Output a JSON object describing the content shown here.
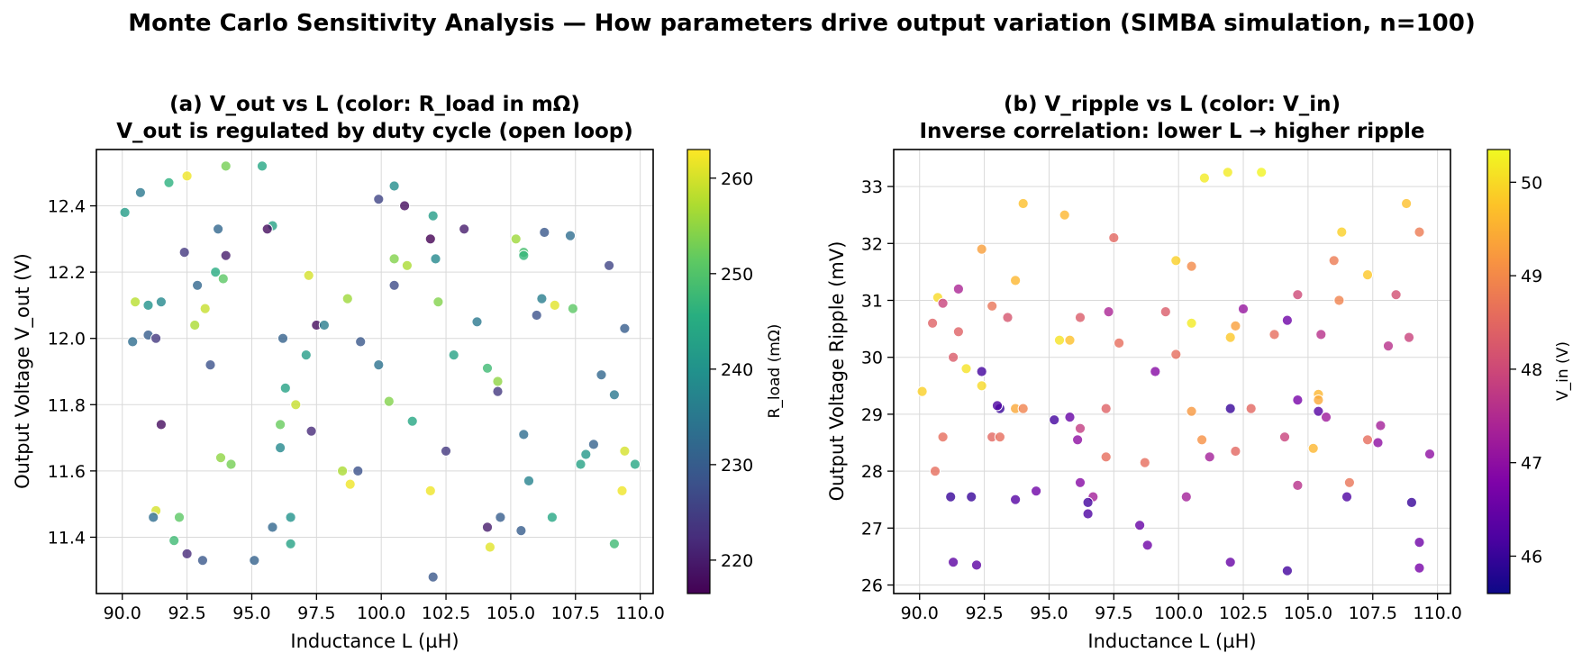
{
  "suptitle": "Monte Carlo Sensitivity Analysis — How parameters drive output variation (SIMBA simulation, n=100)",
  "chart_data": [
    {
      "type": "scatter",
      "title": "(a) V_out vs L (color: R_load in mΩ)",
      "subtitle": "V_out is regulated by duty cycle (open loop)",
      "xlabel": "Inductance L (µH)",
      "ylabel": "Output Voltage V_out (V)",
      "xlim": [
        89.0,
        110.5
      ],
      "ylim": [
        11.23,
        12.57
      ],
      "xticks": [
        90.0,
        92.5,
        95.0,
        97.5,
        100.0,
        102.5,
        105.0,
        107.5,
        110.0
      ],
      "xtick_labels": [
        "90.0",
        "92.5",
        "95.0",
        "97.5",
        "100.0",
        "102.5",
        "105.0",
        "107.5",
        "110.0"
      ],
      "yticks": [
        11.4,
        11.6,
        11.8,
        12.0,
        12.2,
        12.4
      ],
      "ytick_labels": [
        "11.4",
        "11.6",
        "11.8",
        "12.0",
        "12.2",
        "12.4"
      ],
      "grid": true,
      "colormap": "viridis",
      "colorbar": {
        "label": "R_load (mΩ)",
        "min": 216.5,
        "max": 263.0,
        "ticks": [
          220,
          230,
          240,
          250,
          260
        ],
        "tick_labels": [
          "220",
          "230",
          "240",
          "250",
          "260"
        ]
      },
      "points": [
        {
          "x": 90.1,
          "y": 12.38,
          "c": 242
        },
        {
          "x": 90.7,
          "y": 12.44,
          "c": 235
        },
        {
          "x": 91.8,
          "y": 12.47,
          "c": 246
        },
        {
          "x": 92.5,
          "y": 12.49,
          "c": 262
        },
        {
          "x": 94.0,
          "y": 12.52,
          "c": 253
        },
        {
          "x": 95.4,
          "y": 12.52,
          "c": 244
        },
        {
          "x": 100.5,
          "y": 12.46,
          "c": 239
        },
        {
          "x": 99.9,
          "y": 12.42,
          "c": 226
        },
        {
          "x": 100.9,
          "y": 12.4,
          "c": 218
        },
        {
          "x": 102.0,
          "y": 12.37,
          "c": 242
        },
        {
          "x": 101.9,
          "y": 12.3,
          "c": 216
        },
        {
          "x": 103.2,
          "y": 12.33,
          "c": 220
        },
        {
          "x": 95.8,
          "y": 12.34,
          "c": 243
        },
        {
          "x": 95.6,
          "y": 12.33,
          "c": 218
        },
        {
          "x": 93.7,
          "y": 12.33,
          "c": 232
        },
        {
          "x": 92.4,
          "y": 12.26,
          "c": 224
        },
        {
          "x": 94.0,
          "y": 12.25,
          "c": 220
        },
        {
          "x": 105.2,
          "y": 12.3,
          "c": 256
        },
        {
          "x": 105.5,
          "y": 12.26,
          "c": 249
        },
        {
          "x": 105.5,
          "y": 12.25,
          "c": 247
        },
        {
          "x": 106.3,
          "y": 12.32,
          "c": 229
        },
        {
          "x": 107.3,
          "y": 12.31,
          "c": 233
        },
        {
          "x": 108.8,
          "y": 12.22,
          "c": 226
        },
        {
          "x": 102.1,
          "y": 12.24,
          "c": 238
        },
        {
          "x": 100.5,
          "y": 12.24,
          "c": 254
        },
        {
          "x": 101.0,
          "y": 12.22,
          "c": 257
        },
        {
          "x": 93.6,
          "y": 12.2,
          "c": 245
        },
        {
          "x": 93.9,
          "y": 12.18,
          "c": 251
        },
        {
          "x": 97.2,
          "y": 12.19,
          "c": 260
        },
        {
          "x": 100.5,
          "y": 12.16,
          "c": 227
        },
        {
          "x": 92.9,
          "y": 12.16,
          "c": 232
        },
        {
          "x": 90.5,
          "y": 12.11,
          "c": 258
        },
        {
          "x": 91.0,
          "y": 12.1,
          "c": 240
        },
        {
          "x": 91.5,
          "y": 12.11,
          "c": 238
        },
        {
          "x": 93.2,
          "y": 12.09,
          "c": 259
        },
        {
          "x": 92.8,
          "y": 12.04,
          "c": 257
        },
        {
          "x": 98.7,
          "y": 12.12,
          "c": 256
        },
        {
          "x": 102.2,
          "y": 12.11,
          "c": 254
        },
        {
          "x": 106.2,
          "y": 12.12,
          "c": 236
        },
        {
          "x": 106.7,
          "y": 12.1,
          "c": 261
        },
        {
          "x": 107.4,
          "y": 12.09,
          "c": 251
        },
        {
          "x": 106.0,
          "y": 12.07,
          "c": 228
        },
        {
          "x": 109.4,
          "y": 12.03,
          "c": 230
        },
        {
          "x": 97.5,
          "y": 12.04,
          "c": 218
        },
        {
          "x": 97.8,
          "y": 12.04,
          "c": 236
        },
        {
          "x": 103.7,
          "y": 12.05,
          "c": 235
        },
        {
          "x": 90.4,
          "y": 11.99,
          "c": 233
        },
        {
          "x": 91.0,
          "y": 12.01,
          "c": 230
        },
        {
          "x": 91.3,
          "y": 12.0,
          "c": 224
        },
        {
          "x": 96.2,
          "y": 12.0,
          "c": 231
        },
        {
          "x": 99.2,
          "y": 11.99,
          "c": 229
        },
        {
          "x": 93.4,
          "y": 11.92,
          "c": 228
        },
        {
          "x": 97.1,
          "y": 11.95,
          "c": 242
        },
        {
          "x": 99.9,
          "y": 11.92,
          "c": 234
        },
        {
          "x": 102.8,
          "y": 11.95,
          "c": 243
        },
        {
          "x": 104.1,
          "y": 11.91,
          "c": 248
        },
        {
          "x": 104.5,
          "y": 11.87,
          "c": 255
        },
        {
          "x": 104.5,
          "y": 11.84,
          "c": 224
        },
        {
          "x": 108.5,
          "y": 11.89,
          "c": 232
        },
        {
          "x": 109.0,
          "y": 11.83,
          "c": 235
        },
        {
          "x": 96.3,
          "y": 11.85,
          "c": 243
        },
        {
          "x": 96.7,
          "y": 11.8,
          "c": 259
        },
        {
          "x": 100.3,
          "y": 11.81,
          "c": 254
        },
        {
          "x": 101.2,
          "y": 11.75,
          "c": 244
        },
        {
          "x": 91.5,
          "y": 11.74,
          "c": 218
        },
        {
          "x": 96.1,
          "y": 11.74,
          "c": 252
        },
        {
          "x": 97.3,
          "y": 11.72,
          "c": 222
        },
        {
          "x": 105.5,
          "y": 11.71,
          "c": 233
        },
        {
          "x": 96.1,
          "y": 11.67,
          "c": 238
        },
        {
          "x": 102.5,
          "y": 11.66,
          "c": 224
        },
        {
          "x": 93.8,
          "y": 11.64,
          "c": 255
        },
        {
          "x": 94.2,
          "y": 11.62,
          "c": 253
        },
        {
          "x": 98.5,
          "y": 11.6,
          "c": 257
        },
        {
          "x": 99.1,
          "y": 11.6,
          "c": 228
        },
        {
          "x": 98.8,
          "y": 11.56,
          "c": 262
        },
        {
          "x": 101.9,
          "y": 11.54,
          "c": 262
        },
        {
          "x": 105.7,
          "y": 11.57,
          "c": 237
        },
        {
          "x": 108.2,
          "y": 11.68,
          "c": 231
        },
        {
          "x": 107.9,
          "y": 11.65,
          "c": 241
        },
        {
          "x": 107.7,
          "y": 11.62,
          "c": 243
        },
        {
          "x": 109.4,
          "y": 11.66,
          "c": 260
        },
        {
          "x": 109.8,
          "y": 11.62,
          "c": 244
        },
        {
          "x": 109.3,
          "y": 11.54,
          "c": 262
        },
        {
          "x": 91.3,
          "y": 11.48,
          "c": 260
        },
        {
          "x": 91.2,
          "y": 11.46,
          "c": 233
        },
        {
          "x": 92.2,
          "y": 11.46,
          "c": 251
        },
        {
          "x": 96.5,
          "y": 11.46,
          "c": 240
        },
        {
          "x": 95.8,
          "y": 11.43,
          "c": 232
        },
        {
          "x": 104.6,
          "y": 11.46,
          "c": 230
        },
        {
          "x": 104.1,
          "y": 11.43,
          "c": 220
        },
        {
          "x": 105.4,
          "y": 11.42,
          "c": 230
        },
        {
          "x": 106.6,
          "y": 11.46,
          "c": 244
        },
        {
          "x": 92.0,
          "y": 11.39,
          "c": 248
        },
        {
          "x": 96.5,
          "y": 11.38,
          "c": 243
        },
        {
          "x": 104.2,
          "y": 11.37,
          "c": 261
        },
        {
          "x": 109.0,
          "y": 11.38,
          "c": 248
        },
        {
          "x": 92.5,
          "y": 11.35,
          "c": 222
        },
        {
          "x": 93.1,
          "y": 11.33,
          "c": 229
        },
        {
          "x": 95.1,
          "y": 11.33,
          "c": 231
        },
        {
          "x": 102.0,
          "y": 11.28,
          "c": 229
        }
      ]
    },
    {
      "type": "scatter",
      "title": "(b) V_ripple vs L (color: V_in)",
      "subtitle": "Inverse correlation: lower L → higher ripple",
      "xlabel": "Inductance L (µH)",
      "ylabel": "Output Voltage Ripple (mV)",
      "xlim": [
        89.0,
        110.5
      ],
      "ylim": [
        25.85,
        33.65
      ],
      "xticks": [
        90.0,
        92.5,
        95.0,
        97.5,
        100.0,
        102.5,
        105.0,
        107.5,
        110.0
      ],
      "xtick_labels": [
        "90.0",
        "92.5",
        "95.0",
        "97.5",
        "100.0",
        "102.5",
        "105.0",
        "107.5",
        "110.0"
      ],
      "yticks": [
        26,
        27,
        28,
        29,
        30,
        31,
        32,
        33
      ],
      "ytick_labels": [
        "26",
        "27",
        "28",
        "29",
        "30",
        "31",
        "32",
        "33"
      ],
      "grid": true,
      "colormap": "plasma",
      "colorbar": {
        "label": "V_in (V)",
        "min": 45.6,
        "max": 50.35,
        "ticks": [
          46,
          47,
          48,
          49,
          50
        ],
        "tick_labels": [
          "46",
          "47",
          "48",
          "49",
          "50"
        ]
      },
      "points": [
        {
          "x": 101.0,
          "y": 33.15,
          "c": 50.2
        },
        {
          "x": 101.9,
          "y": 33.25,
          "c": 50.2
        },
        {
          "x": 103.2,
          "y": 33.25,
          "c": 50.3
        },
        {
          "x": 94.0,
          "y": 32.7,
          "c": 49.7
        },
        {
          "x": 108.8,
          "y": 32.7,
          "c": 49.7
        },
        {
          "x": 95.6,
          "y": 32.5,
          "c": 49.6
        },
        {
          "x": 97.5,
          "y": 32.1,
          "c": 48.5
        },
        {
          "x": 109.3,
          "y": 32.2,
          "c": 48.8
        },
        {
          "x": 106.3,
          "y": 32.2,
          "c": 49.9
        },
        {
          "x": 92.4,
          "y": 31.9,
          "c": 49.3
        },
        {
          "x": 99.9,
          "y": 31.7,
          "c": 49.9
        },
        {
          "x": 100.5,
          "y": 31.6,
          "c": 49.0
        },
        {
          "x": 106.0,
          "y": 31.7,
          "c": 48.8
        },
        {
          "x": 107.3,
          "y": 31.45,
          "c": 49.8
        },
        {
          "x": 93.7,
          "y": 31.35,
          "c": 49.6
        },
        {
          "x": 91.5,
          "y": 31.2,
          "c": 47.4
        },
        {
          "x": 104.6,
          "y": 31.1,
          "c": 48.0
        },
        {
          "x": 108.4,
          "y": 31.1,
          "c": 48.1
        },
        {
          "x": 90.7,
          "y": 31.05,
          "c": 50.0
        },
        {
          "x": 90.9,
          "y": 30.95,
          "c": 47.9
        },
        {
          "x": 106.2,
          "y": 31.0,
          "c": 48.9
        },
        {
          "x": 92.8,
          "y": 30.9,
          "c": 48.7
        },
        {
          "x": 102.5,
          "y": 30.85,
          "c": 47.1
        },
        {
          "x": 97.3,
          "y": 30.8,
          "c": 47.4
        },
        {
          "x": 99.5,
          "y": 30.8,
          "c": 48.3
        },
        {
          "x": 93.4,
          "y": 30.7,
          "c": 48.2
        },
        {
          "x": 96.2,
          "y": 30.7,
          "c": 48.3
        },
        {
          "x": 104.2,
          "y": 30.65,
          "c": 46.6
        },
        {
          "x": 90.5,
          "y": 30.6,
          "c": 48.4
        },
        {
          "x": 100.5,
          "y": 30.6,
          "c": 50.2
        },
        {
          "x": 102.2,
          "y": 30.55,
          "c": 49.3
        },
        {
          "x": 91.5,
          "y": 30.45,
          "c": 48.4
        },
        {
          "x": 103.7,
          "y": 30.4,
          "c": 48.6
        },
        {
          "x": 105.5,
          "y": 30.4,
          "c": 47.6
        },
        {
          "x": 102.0,
          "y": 30.35,
          "c": 49.8
        },
        {
          "x": 108.9,
          "y": 30.35,
          "c": 47.9
        },
        {
          "x": 95.4,
          "y": 30.3,
          "c": 50.1
        },
        {
          "x": 95.8,
          "y": 30.3,
          "c": 49.7
        },
        {
          "x": 97.7,
          "y": 30.25,
          "c": 48.6
        },
        {
          "x": 108.1,
          "y": 30.2,
          "c": 47.6
        },
        {
          "x": 99.9,
          "y": 30.05,
          "c": 48.6
        },
        {
          "x": 91.3,
          "y": 30.0,
          "c": 48.3
        },
        {
          "x": 91.8,
          "y": 29.8,
          "c": 50.1
        },
        {
          "x": 92.4,
          "y": 29.75,
          "c": 46.1
        },
        {
          "x": 99.1,
          "y": 29.75,
          "c": 46.9
        },
        {
          "x": 92.4,
          "y": 29.5,
          "c": 50.0
        },
        {
          "x": 90.1,
          "y": 29.4,
          "c": 49.9
        },
        {
          "x": 105.4,
          "y": 29.35,
          "c": 49.6
        },
        {
          "x": 105.4,
          "y": 29.25,
          "c": 49.4
        },
        {
          "x": 104.6,
          "y": 29.25,
          "c": 46.7
        },
        {
          "x": 93.1,
          "y": 29.1,
          "c": 46.0
        },
        {
          "x": 93.7,
          "y": 29.1,
          "c": 49.4
        },
        {
          "x": 94.0,
          "y": 29.1,
          "c": 48.9
        },
        {
          "x": 97.2,
          "y": 29.1,
          "c": 48.4
        },
        {
          "x": 102.0,
          "y": 29.1,
          "c": 46.0
        },
        {
          "x": 102.8,
          "y": 29.1,
          "c": 48.5
        },
        {
          "x": 100.5,
          "y": 29.05,
          "c": 49.2
        },
        {
          "x": 105.4,
          "y": 29.05,
          "c": 46.3
        },
        {
          "x": 95.8,
          "y": 28.95,
          "c": 46.5
        },
        {
          "x": 105.7,
          "y": 28.95,
          "c": 47.2
        },
        {
          "x": 95.2,
          "y": 28.9,
          "c": 46.1
        },
        {
          "x": 107.8,
          "y": 28.8,
          "c": 47.3
        },
        {
          "x": 96.2,
          "y": 28.75,
          "c": 47.8
        },
        {
          "x": 104.1,
          "y": 28.6,
          "c": 47.9
        },
        {
          "x": 90.9,
          "y": 28.6,
          "c": 48.6
        },
        {
          "x": 92.8,
          "y": 28.6,
          "c": 48.5
        },
        {
          "x": 93.1,
          "y": 28.6,
          "c": 48.6
        },
        {
          "x": 96.1,
          "y": 28.55,
          "c": 47.0
        },
        {
          "x": 100.9,
          "y": 28.55,
          "c": 49.1
        },
        {
          "x": 107.3,
          "y": 28.55,
          "c": 48.6
        },
        {
          "x": 107.7,
          "y": 28.5,
          "c": 47.0
        },
        {
          "x": 102.2,
          "y": 28.35,
          "c": 48.5
        },
        {
          "x": 105.2,
          "y": 28.4,
          "c": 49.6
        },
        {
          "x": 101.2,
          "y": 28.25,
          "c": 47.3
        },
        {
          "x": 97.2,
          "y": 28.25,
          "c": 48.6
        },
        {
          "x": 109.7,
          "y": 28.3,
          "c": 47.0
        },
        {
          "x": 98.7,
          "y": 28.15,
          "c": 48.6
        },
        {
          "x": 90.6,
          "y": 28.0,
          "c": 48.6
        },
        {
          "x": 96.2,
          "y": 27.8,
          "c": 46.9
        },
        {
          "x": 104.6,
          "y": 27.75,
          "c": 47.6
        },
        {
          "x": 106.6,
          "y": 27.8,
          "c": 48.7
        },
        {
          "x": 94.5,
          "y": 27.65,
          "c": 46.6
        },
        {
          "x": 91.2,
          "y": 27.55,
          "c": 46.0
        },
        {
          "x": 92.0,
          "y": 27.55,
          "c": 46.0
        },
        {
          "x": 93.7,
          "y": 27.5,
          "c": 46.3
        },
        {
          "x": 96.7,
          "y": 27.55,
          "c": 47.3
        },
        {
          "x": 100.3,
          "y": 27.55,
          "c": 47.3
        },
        {
          "x": 106.5,
          "y": 27.55,
          "c": 46.2
        },
        {
          "x": 96.5,
          "y": 27.45,
          "c": 46.1
        },
        {
          "x": 109.0,
          "y": 27.45,
          "c": 46.0
        },
        {
          "x": 96.5,
          "y": 27.25,
          "c": 46.2
        },
        {
          "x": 98.5,
          "y": 27.05,
          "c": 46.5
        },
        {
          "x": 98.8,
          "y": 26.7,
          "c": 46.6
        },
        {
          "x": 109.3,
          "y": 26.75,
          "c": 46.6
        },
        {
          "x": 91.3,
          "y": 26.4,
          "c": 46.4
        },
        {
          "x": 92.2,
          "y": 26.35,
          "c": 46.4
        },
        {
          "x": 102.0,
          "y": 26.4,
          "c": 46.5
        },
        {
          "x": 104.2,
          "y": 26.25,
          "c": 46.1
        },
        {
          "x": 109.3,
          "y": 26.3,
          "c": 46.7
        },
        {
          "x": 93.0,
          "y": 29.15,
          "c": 46.2
        }
      ]
    }
  ]
}
